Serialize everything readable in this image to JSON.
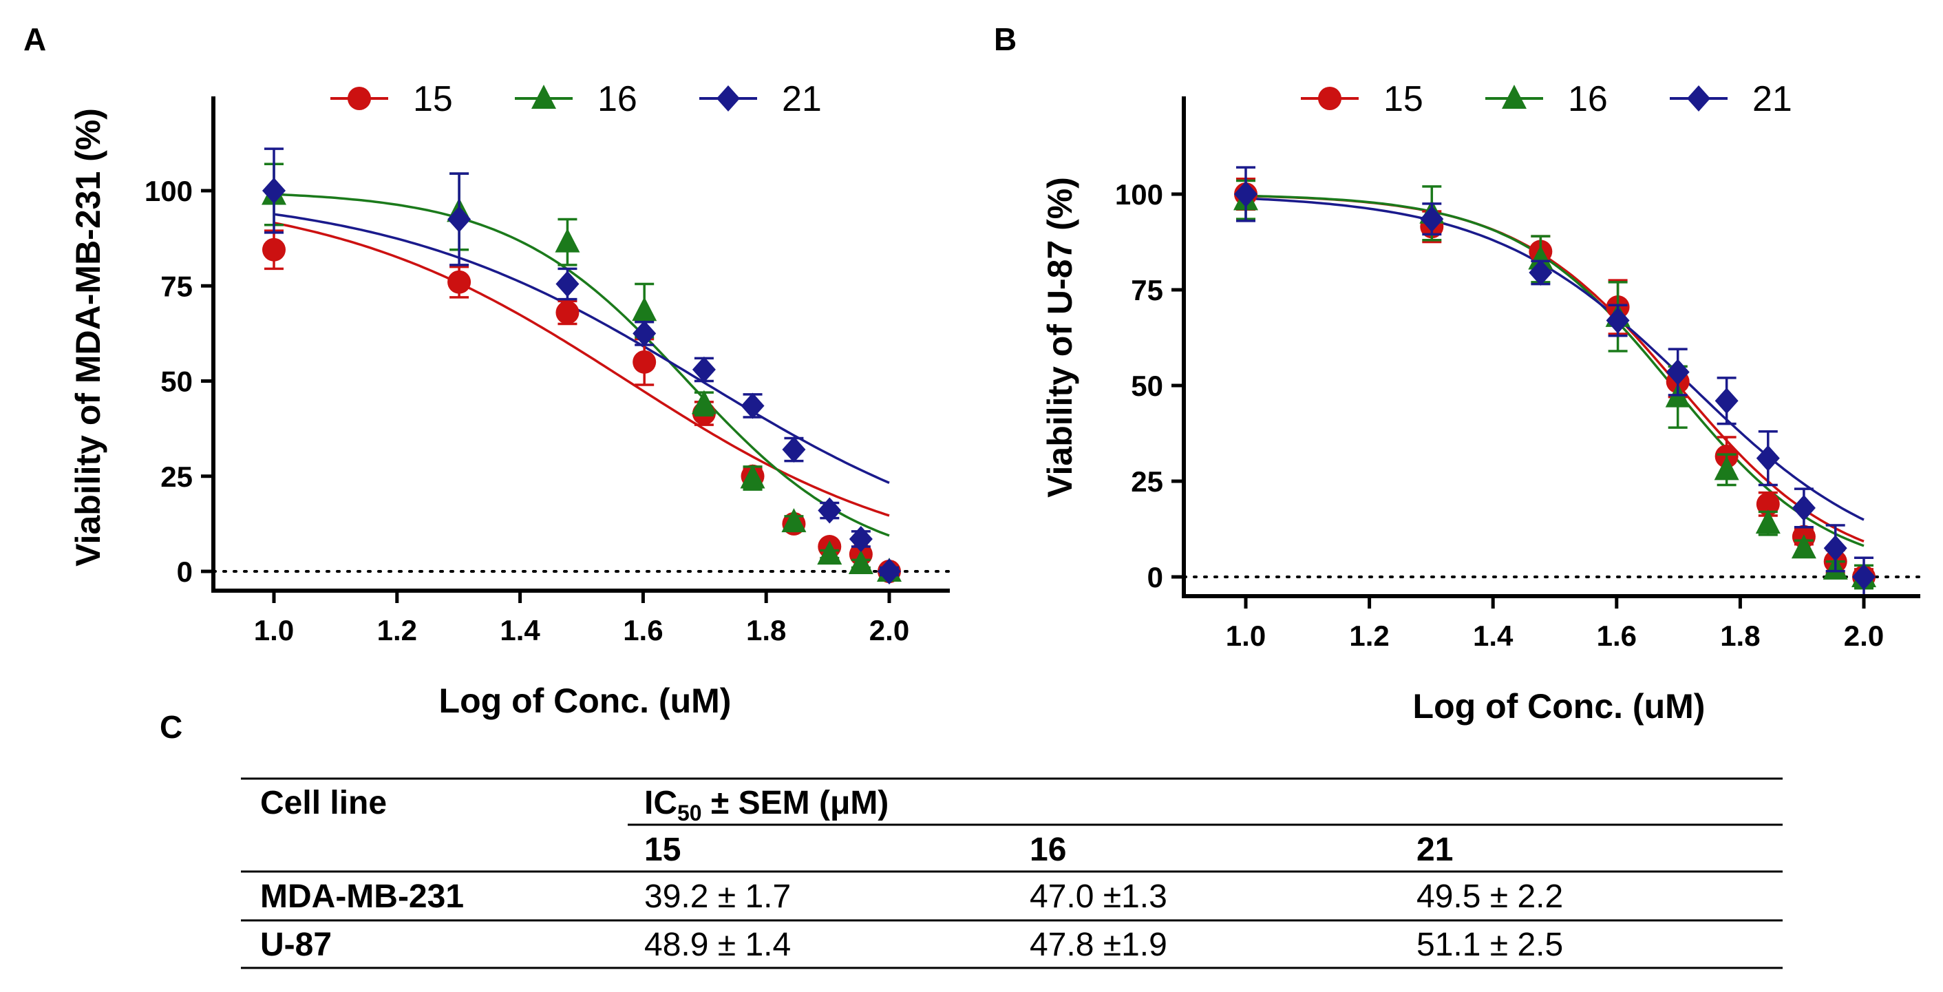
{
  "panel_c_label": "C",
  "chart_data": [
    {
      "type": "scatter",
      "panel": "A",
      "xlabel": "Log of Conc. (uM)",
      "ylabel": "Viability of MDA-MB-231 (%)",
      "xlim": [
        0.9,
        2.1
      ],
      "ylim": [
        -6,
        120
      ],
      "xticks": [
        1.0,
        1.2,
        1.4,
        1.6,
        1.8,
        2.0
      ],
      "xtick_labels": [
        "1.0",
        "1.2",
        "1.4",
        "1.6",
        "1.8",
        "2.0"
      ],
      "yticks": [
        0,
        25,
        50,
        75,
        100
      ],
      "ytick_labels": [
        "0",
        "25",
        "50",
        "75",
        "100"
      ],
      "reference_line": 0,
      "legend": "top",
      "x": [
        1.0,
        1.301,
        1.477,
        1.602,
        1.699,
        1.778,
        1.845,
        1.903,
        1.954,
        2.0
      ],
      "series": [
        {
          "name": "15",
          "color": "#cc1111",
          "marker": "circle",
          "values": [
            84.5,
            76,
            68,
            55,
            41.5,
            25,
            12.5,
            6.5,
            4.5,
            0
          ],
          "errors": [
            5,
            4,
            3,
            6,
            3,
            2,
            1.5,
            1,
            1,
            1
          ],
          "fit": {
            "top": 100,
            "bottom": 0,
            "ic50_log": 1.575,
            "hill": 1.8
          }
        },
        {
          "name": "16",
          "color": "#1b7a1b",
          "marker": "triangle",
          "values": [
            99,
            94.5,
            86.5,
            68.5,
            44,
            24.5,
            13,
            4.5,
            2,
            0
          ],
          "errors": [
            8,
            10,
            6,
            7,
            3,
            3,
            1.5,
            1,
            1,
            1
          ],
          "fit": {
            "top": 100,
            "bottom": 0,
            "ic50_log": 1.672,
            "hill": 3.0
          }
        },
        {
          "name": "21",
          "color": "#1a1a8c",
          "marker": "diamond",
          "values": [
            100,
            92.5,
            75.5,
            62.5,
            53,
            43.5,
            32,
            16,
            8.5,
            0
          ],
          "errors": [
            11,
            12,
            4,
            3,
            3,
            3,
            3,
            2,
            2,
            1
          ],
          "fit": {
            "top": 100,
            "bottom": 0,
            "ic50_log": 1.695,
            "hill": 1.7
          }
        }
      ]
    },
    {
      "type": "scatter",
      "panel": "B",
      "xlabel": "Log of Conc. (uM)",
      "ylabel": "Viability of U-87 (%)",
      "xlim": [
        0.9,
        2.1
      ],
      "ylim": [
        -6,
        120
      ],
      "xticks": [
        1.0,
        1.2,
        1.4,
        1.6,
        1.8,
        2.0
      ],
      "xtick_labels": [
        "1.0",
        "1.2",
        "1.4",
        "1.6",
        "1.8",
        "2.0"
      ],
      "yticks": [
        0,
        25,
        50,
        75,
        100
      ],
      "ytick_labels": [
        "0",
        "25",
        "50",
        "75",
        "100"
      ],
      "reference_line": 0,
      "legend": "top",
      "x": [
        1.0,
        1.301,
        1.477,
        1.602,
        1.699,
        1.778,
        1.845,
        1.903,
        1.954,
        2.0
      ],
      "series": [
        {
          "name": "15",
          "color": "#cc1111",
          "marker": "circle",
          "values": [
            100,
            91.5,
            85,
            70.5,
            51,
            31.5,
            19,
            10.5,
            4,
            0
          ],
          "errors": [
            4,
            4,
            4,
            7,
            4,
            5,
            3,
            2,
            3,
            2
          ],
          "fit": {
            "top": 100,
            "bottom": 0,
            "ic50_log": 1.7,
            "hill": 3.3
          }
        },
        {
          "name": "16",
          "color": "#1b7a1b",
          "marker": "triangle",
          "values": [
            98.5,
            95,
            83,
            68,
            47,
            28,
            14,
            7.5,
            2,
            0
          ],
          "errors": [
            5,
            7,
            6,
            9,
            8,
            4,
            3,
            2,
            2,
            3
          ],
          "fit": {
            "top": 100,
            "bottom": 0,
            "ic50_log": 1.69,
            "hill": 3.4
          }
        },
        {
          "name": "21",
          "color": "#1a1a8c",
          "marker": "diamond",
          "values": [
            100,
            93.5,
            79.5,
            67,
            53.5,
            46,
            31,
            18,
            7.5,
            0
          ],
          "errors": [
            7,
            4,
            3,
            4,
            6,
            6,
            7,
            5,
            6,
            5
          ],
          "fit": {
            "top": 100,
            "bottom": 0,
            "ic50_log": 1.72,
            "hill": 2.7
          }
        }
      ]
    },
    {
      "type": "table",
      "panel": "C",
      "header_cell_line": "Cell line",
      "header_group_prefix": "IC",
      "header_group_sub": "50",
      "header_group_suffix": " ± SEM (μM)",
      "columns": [
        "15",
        "16",
        "21"
      ],
      "rows": [
        {
          "label": "MDA-MB-231",
          "values": [
            "39.2 ± 1.7",
            "47.0 ±1.3",
            "49.5 ± 2.2"
          ]
        },
        {
          "label": "U-87",
          "values": [
            "48.9 ± 1.4",
            "47.8 ±1.9",
            "51.1 ± 2.5"
          ]
        }
      ]
    }
  ]
}
